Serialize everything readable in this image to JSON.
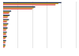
{
  "chart_data": {
    "type": "bar",
    "orientation": "horizontal",
    "categories": [
      null,
      null,
      null,
      null,
      null,
      null,
      null,
      null,
      null,
      null,
      null
    ],
    "series": [
      {
        "color": "#1f2d4d",
        "values": [
          80,
          44,
          11,
          9,
          8,
          7,
          6,
          5,
          5,
          4,
          3
        ]
      },
      {
        "color": "#c9a227",
        "values": [
          76,
          42,
          9,
          7,
          6,
          6,
          5,
          4,
          4,
          3,
          3
        ]
      },
      {
        "color": "#d9534f",
        "values": [
          72,
          40,
          8,
          6,
          5,
          5,
          4,
          4,
          3,
          3,
          2
        ]
      }
    ],
    "xlim": [
      0,
      100
    ],
    "xticks": [
      0,
      20,
      40,
      60,
      80,
      100
    ],
    "grid": true,
    "tick_labels": false
  }
}
